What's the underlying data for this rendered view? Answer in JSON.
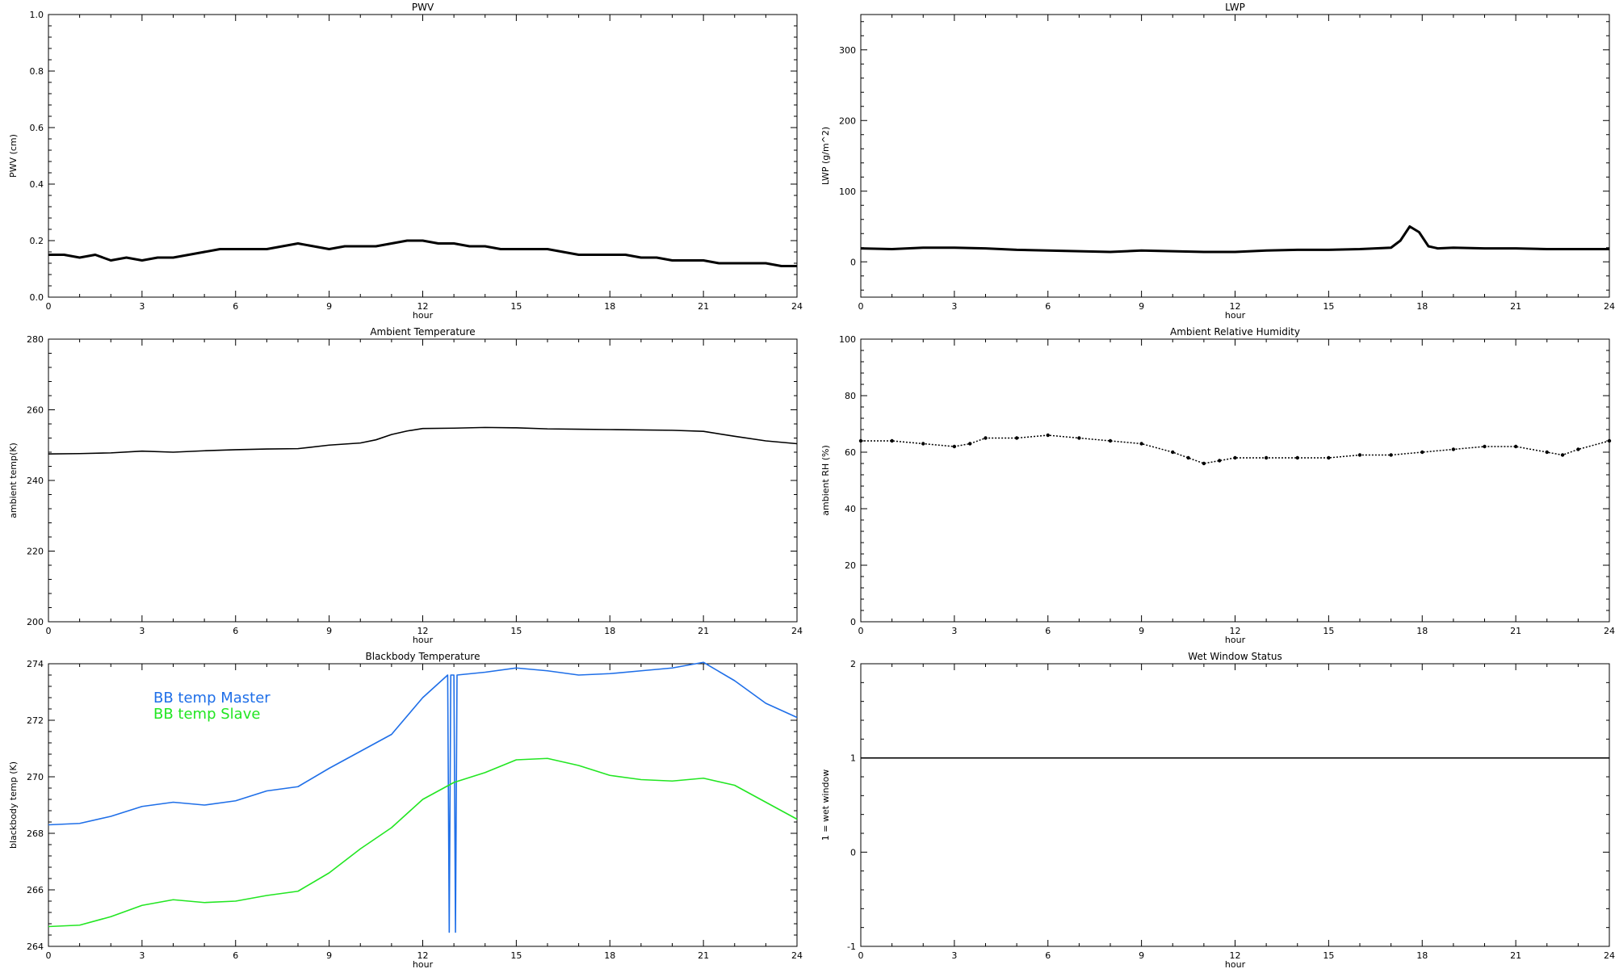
{
  "chart_data": [
    {
      "type": "line",
      "title": "PWV",
      "xlabel": "hour",
      "ylabel": "PWV (cm)",
      "xlim": [
        0,
        24
      ],
      "ylim": [
        0,
        1.0
      ],
      "xticks": [
        0,
        3,
        6,
        9,
        12,
        15,
        18,
        21,
        24
      ],
      "xtick_labels": [
        "0",
        "3",
        "6",
        "9",
        "12",
        "15",
        "18",
        "21",
        "24"
      ],
      "yticks": [
        0,
        0.2,
        0.4,
        0.6,
        0.8,
        1.0
      ],
      "ytick_labels": [
        "0.0",
        "0.2",
        "0.4",
        "0.6",
        "0.8",
        "1.0"
      ],
      "series": [
        {
          "color": "#000000",
          "x": [
            0,
            0.5,
            1,
            1.5,
            2,
            2.5,
            3,
            3.5,
            4,
            4.5,
            5,
            5.5,
            6,
            6.5,
            7,
            7.5,
            8,
            8.5,
            9,
            9.5,
            10,
            10.5,
            11,
            11.5,
            12,
            12.5,
            13,
            13.5,
            14,
            14.5,
            15,
            15.5,
            16,
            16.5,
            17,
            17.5,
            18,
            18.5,
            19,
            19.5,
            20,
            20.5,
            21,
            21.5,
            22,
            22.5,
            23,
            23.5,
            24
          ],
          "values": [
            0.15,
            0.15,
            0.14,
            0.15,
            0.13,
            0.14,
            0.13,
            0.14,
            0.14,
            0.15,
            0.16,
            0.17,
            0.17,
            0.17,
            0.17,
            0.18,
            0.19,
            0.18,
            0.17,
            0.18,
            0.18,
            0.18,
            0.19,
            0.2,
            0.2,
            0.19,
            0.19,
            0.18,
            0.18,
            0.17,
            0.17,
            0.17,
            0.17,
            0.16,
            0.15,
            0.15,
            0.15,
            0.15,
            0.14,
            0.14,
            0.13,
            0.13,
            0.13,
            0.12,
            0.12,
            0.12,
            0.12,
            0.11,
            0.11
          ]
        }
      ]
    },
    {
      "type": "line",
      "title": "LWP",
      "xlabel": "hour",
      "ylabel": "LWP (g/m^2)",
      "xlim": [
        0,
        24
      ],
      "ylim": [
        -50,
        350
      ],
      "xticks": [
        0,
        3,
        6,
        9,
        12,
        15,
        18,
        21,
        24
      ],
      "xtick_labels": [
        "0",
        "3",
        "6",
        "9",
        "12",
        "15",
        "18",
        "21",
        "24"
      ],
      "yticks": [
        0,
        100,
        200,
        300
      ],
      "ytick_labels": [
        "0",
        "100",
        "200",
        "300"
      ],
      "series": [
        {
          "color": "#000000",
          "x": [
            0,
            1,
            2,
            3,
            4,
            5,
            6,
            7,
            8,
            9,
            10,
            11,
            12,
            13,
            14,
            15,
            16,
            17,
            17.3,
            17.6,
            17.9,
            18.2,
            18.5,
            19,
            20,
            21,
            22,
            23,
            24
          ],
          "values": [
            19,
            18,
            20,
            20,
            19,
            17,
            16,
            15,
            14,
            16,
            15,
            14,
            14,
            16,
            17,
            17,
            18,
            20,
            30,
            50,
            42,
            22,
            19,
            20,
            19,
            19,
            18,
            18,
            18
          ]
        }
      ]
    },
    {
      "type": "line",
      "title": "Ambient Temperature",
      "xlabel": "hour",
      "ylabel": "ambient temp(K)",
      "xlim": [
        0,
        24
      ],
      "ylim": [
        200,
        280
      ],
      "xticks": [
        0,
        3,
        6,
        9,
        12,
        15,
        18,
        21,
        24
      ],
      "xtick_labels": [
        "0",
        "3",
        "6",
        "9",
        "12",
        "15",
        "18",
        "21",
        "24"
      ],
      "yticks": [
        200,
        220,
        240,
        260,
        280
      ],
      "ytick_labels": [
        "200",
        "220",
        "240",
        "260",
        "280"
      ],
      "series": [
        {
          "color": "#000000",
          "x": [
            0,
            1,
            2,
            3,
            4,
            5,
            6,
            7,
            8,
            9,
            10,
            10.5,
            11,
            11.5,
            12,
            13,
            14,
            15,
            16,
            17,
            18,
            19,
            20,
            21,
            22,
            23,
            24
          ],
          "values": [
            247.5,
            247.6,
            247.8,
            248.3,
            248.0,
            248.4,
            248.7,
            248.9,
            249.0,
            250.0,
            250.6,
            251.5,
            253.0,
            254.0,
            254.7,
            254.8,
            255.0,
            254.9,
            254.6,
            254.5,
            254.4,
            254.3,
            254.2,
            253.9,
            252.5,
            251.2,
            250.4
          ]
        }
      ]
    },
    {
      "type": "scatter",
      "title": "Ambient Relative Humidity",
      "xlabel": "hour",
      "ylabel": "ambient RH (%)",
      "xlim": [
        0,
        24
      ],
      "ylim": [
        0,
        100
      ],
      "xticks": [
        0,
        3,
        6,
        9,
        12,
        15,
        18,
        21,
        24
      ],
      "xtick_labels": [
        "0",
        "3",
        "6",
        "9",
        "12",
        "15",
        "18",
        "21",
        "24"
      ],
      "yticks": [
        0,
        20,
        40,
        60,
        80,
        100
      ],
      "ytick_labels": [
        "0",
        "20",
        "40",
        "60",
        "80",
        "100"
      ],
      "series": [
        {
          "color": "#000000",
          "x": [
            0,
            1,
            2,
            3,
            3.5,
            4,
            5,
            6,
            7,
            8,
            9,
            10,
            10.5,
            11,
            11.5,
            12,
            13,
            14,
            15,
            16,
            17,
            18,
            19,
            20,
            21,
            22,
            22.5,
            23,
            24
          ],
          "values": [
            64,
            64,
            63,
            62,
            63,
            65,
            65,
            66,
            65,
            64,
            63,
            60,
            58,
            56,
            57,
            58,
            58,
            58,
            58,
            59,
            59,
            60,
            61,
            62,
            62,
            60,
            59,
            61,
            64
          ]
        }
      ]
    },
    {
      "type": "line",
      "title": "Blackbody Temperature",
      "xlabel": "hour",
      "ylabel": "blackbody temp (K)",
      "xlim": [
        0,
        24
      ],
      "ylim": [
        264,
        274
      ],
      "xticks": [
        0,
        3,
        6,
        9,
        12,
        15,
        18,
        21,
        24
      ],
      "xtick_labels": [
        "0",
        "3",
        "6",
        "9",
        "12",
        "15",
        "18",
        "21",
        "24"
      ],
      "yticks": [
        264,
        266,
        268,
        270,
        272,
        274
      ],
      "ytick_labels": [
        "264",
        "266",
        "268",
        "270",
        "272",
        "274"
      ],
      "legend_position": "top-left",
      "series": [
        {
          "name": "BB temp Master",
          "color": "#1f6fe8",
          "x": [
            0,
            1,
            2,
            3,
            4,
            5,
            6,
            7,
            8,
            9,
            10,
            11,
            12,
            12.8,
            12.85,
            12.9,
            13.0,
            13.05,
            13.1,
            14,
            15,
            16,
            17,
            18,
            19,
            20,
            21,
            22,
            23,
            24
          ],
          "values": [
            268.3,
            268.35,
            268.6,
            268.95,
            269.1,
            269.0,
            269.15,
            269.5,
            269.65,
            270.3,
            270.9,
            271.5,
            272.8,
            273.6,
            264.5,
            273.6,
            273.6,
            264.5,
            273.6,
            273.7,
            273.85,
            273.75,
            273.6,
            273.65,
            273.75,
            273.85,
            274.05,
            273.4,
            272.6,
            272.1
          ]
        },
        {
          "name": "BB temp Slave",
          "color": "#22e622",
          "x": [
            0,
            1,
            2,
            3,
            4,
            5,
            6,
            7,
            8,
            9,
            10,
            11,
            12,
            13,
            14,
            15,
            16,
            17,
            18,
            19,
            20,
            21,
            22,
            23,
            24
          ],
          "values": [
            264.7,
            264.75,
            265.05,
            265.45,
            265.65,
            265.55,
            265.6,
            265.8,
            265.95,
            266.6,
            267.45,
            268.2,
            269.2,
            269.8,
            270.15,
            270.6,
            270.65,
            270.4,
            270.05,
            269.9,
            269.85,
            269.95,
            269.7,
            269.1,
            268.5
          ]
        }
      ]
    },
    {
      "type": "line",
      "title": "Wet Window Status",
      "xlabel": "hour",
      "ylabel": "1 = wet window",
      "xlim": [
        0,
        24
      ],
      "ylim": [
        -1,
        2
      ],
      "xticks": [
        0,
        3,
        6,
        9,
        12,
        15,
        18,
        21,
        24
      ],
      "xtick_labels": [
        "0",
        "3",
        "6",
        "9",
        "12",
        "15",
        "18",
        "21",
        "24"
      ],
      "yticks": [
        -1,
        0,
        1,
        2
      ],
      "ytick_labels": [
        "-1",
        "0",
        "1",
        "2"
      ],
      "series": [
        {
          "color": "#000000",
          "x": [
            0,
            24
          ],
          "values": [
            1,
            1
          ]
        }
      ]
    }
  ]
}
